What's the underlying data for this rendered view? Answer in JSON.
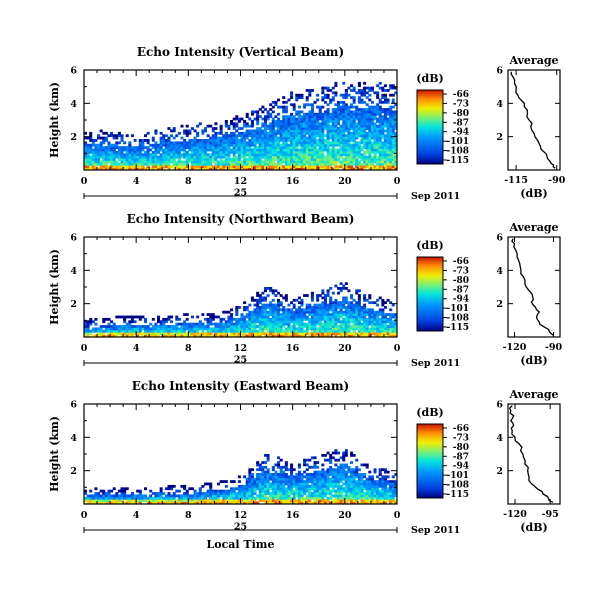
{
  "figure": {
    "day_label": "25",
    "date_label": "Sep 2011",
    "xlabel": "Local Time",
    "ylabel": "Height (km)",
    "colorbar_unit": "(dB)",
    "colorbar_ticks": [
      "-66",
      "-73",
      "-80",
      "-87",
      "-94",
      "-101",
      "-108",
      "-115"
    ],
    "average_title": "Average",
    "average_xlabel": "(dB)"
  },
  "chart_data": [
    {
      "type": "heatmap",
      "title": "Echo Intensity (Vertical Beam)",
      "xlabel": "Local Time",
      "ylabel": "Height (km)",
      "x_ticks": [
        "0",
        "4",
        "8",
        "12",
        "16",
        "20",
        "0"
      ],
      "y_ticks": [
        "6",
        "4",
        "2"
      ],
      "xlim": [
        0,
        24
      ],
      "ylim": [
        0,
        6
      ],
      "colorbar": {
        "unit": "dB",
        "range": [
          -115,
          -66
        ]
      },
      "echo_top_km": [
        [
          0,
          2.0
        ],
        [
          2,
          2.1
        ],
        [
          4,
          1.8
        ],
        [
          6,
          2.2
        ],
        [
          8,
          2.4
        ],
        [
          10,
          2.6
        ],
        [
          12,
          3.0
        ],
        [
          14,
          3.6
        ],
        [
          16,
          4.4
        ],
        [
          18,
          4.6
        ],
        [
          20,
          5.1
        ],
        [
          22,
          5.0
        ],
        [
          24,
          4.8
        ]
      ],
      "average": {
        "title": "Average",
        "xlabel": "(dB)",
        "x_ticks": [
          "-115",
          "-90"
        ],
        "y_ticks": [
          "6",
          "4",
          "2"
        ],
        "xlim": [
          -120,
          -88
        ],
        "ylim": [
          0,
          6
        ],
        "profile": [
          [
            -91,
            0.1
          ],
          [
            -92,
            0.3
          ],
          [
            -94,
            0.5
          ],
          [
            -96,
            0.8
          ],
          [
            -98,
            1.1
          ],
          [
            -100,
            1.4
          ],
          [
            -102,
            1.8
          ],
          [
            -104,
            2.2
          ],
          [
            -106,
            2.6
          ],
          [
            -107,
            3.0
          ],
          [
            -108,
            3.4
          ],
          [
            -110,
            3.8
          ],
          [
            -112,
            4.2
          ],
          [
            -114,
            4.5
          ],
          [
            -115,
            4.8
          ],
          [
            -116,
            5.2
          ],
          [
            -117,
            5.6
          ],
          [
            -118,
            5.9
          ]
        ]
      }
    },
    {
      "type": "heatmap",
      "title": "Echo Intensity (Northward Beam)",
      "xlabel": "Local Time",
      "ylabel": "Height (km)",
      "x_ticks": [
        "0",
        "4",
        "8",
        "12",
        "16",
        "20",
        "0"
      ],
      "y_ticks": [
        "6",
        "4",
        "2"
      ],
      "xlim": [
        0,
        24
      ],
      "ylim": [
        0,
        6
      ],
      "colorbar": {
        "unit": "dB",
        "range": [
          -115,
          -66
        ]
      },
      "echo_top_km": [
        [
          0,
          0.8
        ],
        [
          2,
          0.9
        ],
        [
          4,
          1.0
        ],
        [
          6,
          1.0
        ],
        [
          8,
          1.1
        ],
        [
          10,
          1.2
        ],
        [
          12,
          1.6
        ],
        [
          14,
          2.8
        ],
        [
          16,
          2.0
        ],
        [
          18,
          2.6
        ],
        [
          20,
          3.0
        ],
        [
          22,
          2.2
        ],
        [
          24,
          1.8
        ]
      ],
      "average": {
        "title": "Average",
        "xlabel": "(dB)",
        "x_ticks": [
          "-120",
          "-90"
        ],
        "y_ticks": [
          "6",
          "4",
          "2"
        ],
        "xlim": [
          -125,
          -85
        ],
        "ylim": [
          0,
          6
        ],
        "profile": [
          [
            -90,
            0.1
          ],
          [
            -93,
            0.3
          ],
          [
            -97,
            0.6
          ],
          [
            -101,
            0.9
          ],
          [
            -103,
            1.2
          ],
          [
            -101,
            1.5
          ],
          [
            -104,
            1.8
          ],
          [
            -107,
            2.1
          ],
          [
            -106,
            2.4
          ],
          [
            -109,
            2.8
          ],
          [
            -112,
            3.2
          ],
          [
            -113,
            3.6
          ],
          [
            -115,
            4.0
          ],
          [
            -116,
            4.4
          ],
          [
            -118,
            4.8
          ],
          [
            -119,
            5.2
          ],
          [
            -120,
            5.6
          ],
          [
            -121,
            5.9
          ]
        ]
      }
    },
    {
      "type": "heatmap",
      "title": "Echo Intensity (Eastward Beam)",
      "xlabel": "Local Time",
      "ylabel": "Height (km)",
      "x_ticks": [
        "0",
        "4",
        "8",
        "12",
        "16",
        "20",
        "0"
      ],
      "y_ticks": [
        "6",
        "4",
        "2"
      ],
      "xlim": [
        0,
        24
      ],
      "ylim": [
        0,
        6
      ],
      "colorbar": {
        "unit": "dB",
        "range": [
          -115,
          -66
        ]
      },
      "echo_top_km": [
        [
          0,
          0.7
        ],
        [
          2,
          0.7
        ],
        [
          4,
          0.7
        ],
        [
          6,
          0.8
        ],
        [
          8,
          0.8
        ],
        [
          10,
          1.0
        ],
        [
          12,
          1.4
        ],
        [
          14,
          2.8
        ],
        [
          16,
          2.2
        ],
        [
          18,
          2.6
        ],
        [
          20,
          3.1
        ],
        [
          22,
          2.0
        ],
        [
          24,
          1.6
        ]
      ],
      "average": {
        "title": "Average",
        "xlabel": "(dB)",
        "x_ticks": [
          "-120",
          "-95"
        ],
        "y_ticks": [
          "6",
          "4",
          "2"
        ],
        "xlim": [
          -125,
          -88
        ],
        "ylim": [
          0,
          6
        ],
        "profile": [
          [
            -93,
            0.1
          ],
          [
            -96,
            0.3
          ],
          [
            -100,
            0.6
          ],
          [
            -104,
            0.9
          ],
          [
            -108,
            1.2
          ],
          [
            -110,
            1.6
          ],
          [
            -111,
            2.0
          ],
          [
            -113,
            2.4
          ],
          [
            -114,
            2.8
          ],
          [
            -116,
            3.2
          ],
          [
            -117,
            3.6
          ],
          [
            -120,
            4.0
          ],
          [
            -122,
            4.4
          ],
          [
            -121,
            4.7
          ],
          [
            -123,
            5.0
          ],
          [
            -121,
            5.3
          ],
          [
            -123,
            5.6
          ],
          [
            -122,
            5.9
          ]
        ]
      }
    }
  ]
}
